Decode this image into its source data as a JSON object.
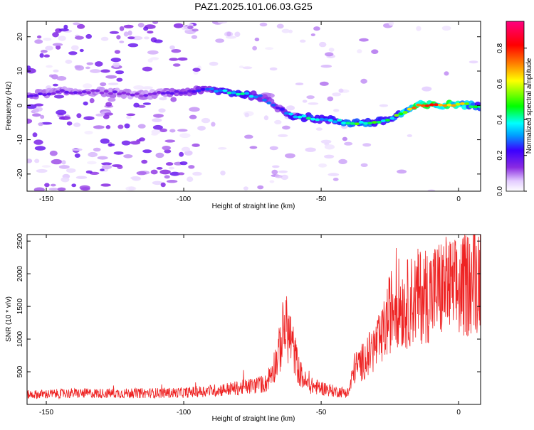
{
  "title": "PAZ1.2025.101.06.03.G25",
  "colors": {
    "axis": "#000000",
    "snr_line": "#ee2222",
    "colormap": [
      "#ffffff",
      "#e3ccff",
      "#8a2be2",
      "#3b00ff",
      "#00a0ff",
      "#00ffff",
      "#00ff00",
      "#ffff00",
      "#ff8000",
      "#ff0000",
      "#ff0080"
    ]
  },
  "chart_data": [
    {
      "type": "heatmap",
      "title": "PAZ1.2025.101.06.03.G25",
      "xlabel": "Height of straight line (km)",
      "ylabel": "Frequency (Hz)",
      "xlim": [
        -157,
        8
      ],
      "ylim": [
        -25,
        24.5
      ],
      "x_ticks": [
        -150,
        -100,
        -50,
        0
      ],
      "x_tick_labels": [
        "-150",
        "-100",
        "-50",
        "0"
      ],
      "y_ticks": [
        -20,
        -10,
        0,
        10,
        20
      ],
      "y_tick_labels": [
        "-20",
        "-10",
        "0",
        "10",
        "20"
      ],
      "ridge": {
        "x": [
          -157,
          -145,
          -130,
          -115,
          -100,
          -90,
          -80,
          -72,
          -65,
          -60,
          -55,
          -50,
          -45,
          -40,
          -35,
          -30,
          -25,
          -20,
          -15,
          -10,
          -5,
          0,
          8
        ],
        "y": [
          3,
          4,
          4,
          3,
          4,
          4.5,
          3.5,
          2.5,
          -1,
          -3,
          -3.5,
          -4,
          -4.5,
          -5,
          -5,
          -5,
          -4,
          -2,
          0,
          0,
          0,
          0.5,
          -0.5
        ],
        "amplitude": [
          0.18,
          0.18,
          0.17,
          0.15,
          0.2,
          0.3,
          0.45,
          0.3,
          0.25,
          0.4,
          0.45,
          0.35,
          0.4,
          0.5,
          0.5,
          0.5,
          0.45,
          0.6,
          0.75,
          0.8,
          0.8,
          0.7,
          0.45
        ]
      },
      "colorbar": {
        "label": "Normalized spectral amplitude",
        "ticks": [
          0,
          0.2,
          0.4,
          0.6,
          0.8
        ],
        "tick_labels": [
          "0.0",
          "0.2",
          "0.4",
          "0.6",
          "0.8"
        ],
        "range": [
          0,
          0.95
        ]
      }
    },
    {
      "type": "line",
      "xlabel": "Height of straight line (km)",
      "ylabel": "SNR (10 * v/v)",
      "xlim": [
        -157,
        8
      ],
      "ylim": [
        0,
        2600
      ],
      "x_ticks": [
        -150,
        -100,
        -50,
        0
      ],
      "x_tick_labels": [
        "-150",
        "-100",
        "-50",
        "0"
      ],
      "y_ticks": [
        500,
        1000,
        1500,
        2000,
        2500
      ],
      "y_tick_labels": [
        "500",
        "1000",
        "1500",
        "2000",
        "2500"
      ],
      "series": [
        {
          "x": [
            -157,
            -140,
            -120,
            -100,
            -90,
            -80,
            -70,
            -66,
            -63,
            -61,
            -58,
            -55,
            -50,
            -45,
            -40,
            -38,
            -35,
            -32,
            -28,
            -25,
            -23,
            -20,
            -15,
            -10,
            -5,
            0,
            5,
            8
          ],
          "y": [
            150,
            170,
            170,
            180,
            210,
            250,
            320,
            700,
            1200,
            1000,
            500,
            300,
            250,
            200,
            180,
            550,
            650,
            800,
            1000,
            1400,
            1600,
            1500,
            1650,
            1700,
            1800,
            1750,
            1900,
            2000
          ]
        }
      ]
    }
  ]
}
